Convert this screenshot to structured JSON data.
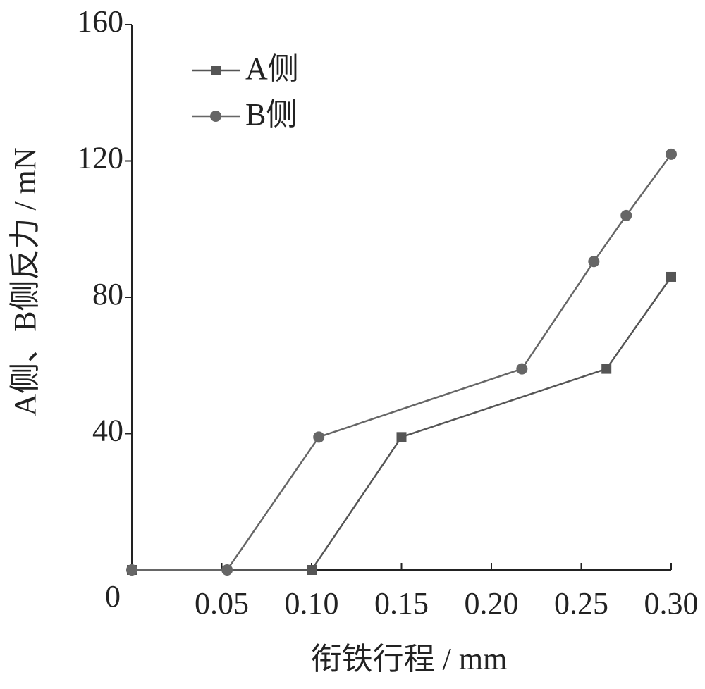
{
  "chart_data": {
    "type": "line",
    "x_label": "衔铁行程 / mm",
    "y_label": "A侧、B侧反力 / mN",
    "xlim": [
      0,
      0.3
    ],
    "xticks": [
      {
        "value": 0.05,
        "label": "0.05"
      },
      {
        "value": 0.1,
        "label": "0.10"
      },
      {
        "value": 0.15,
        "label": "0.15"
      },
      {
        "value": 0.2,
        "label": "0.20"
      },
      {
        "value": 0.25,
        "label": "0.25"
      },
      {
        "value": 0.3,
        "label": "0.30"
      }
    ],
    "ylim": [
      0,
      160
    ],
    "yticks": [
      0,
      40,
      80,
      120,
      160
    ],
    "legend": "upper-left",
    "series": [
      {
        "name": "A侧",
        "color": "#555555",
        "marker": "square",
        "x": [
          0,
          0.1,
          0.15,
          0.264,
          0.3
        ],
        "values": [
          0,
          0,
          39,
          59,
          86
        ]
      },
      {
        "name": "B侧",
        "color": "#666666",
        "marker": "circle",
        "x": [
          0,
          0.053,
          0.104,
          0.217,
          0.257,
          0.275,
          0.3
        ],
        "values": [
          0,
          0,
          39,
          59,
          90.5,
          104,
          122
        ]
      }
    ]
  }
}
